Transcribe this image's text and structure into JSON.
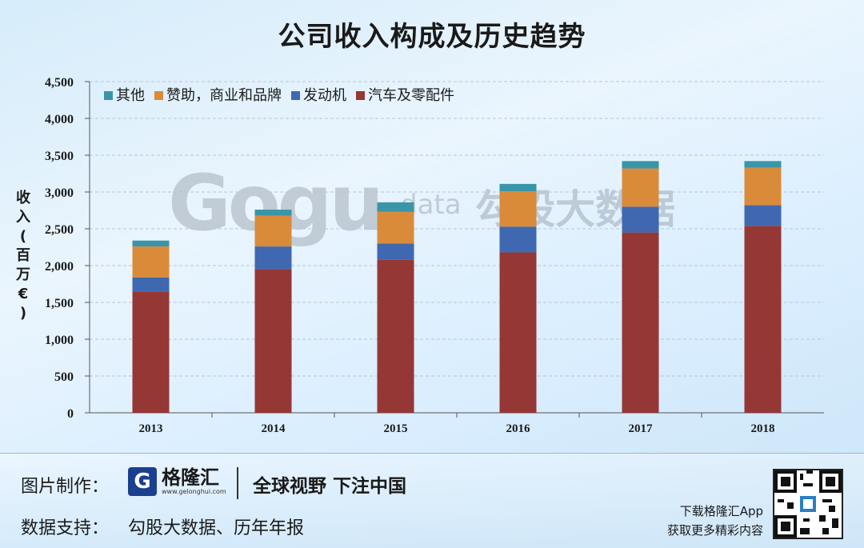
{
  "page": {
    "title": "公司收入构成及历史趋势"
  },
  "chart_data": {
    "type": "bar",
    "stacked": true,
    "title": "公司收入构成及历史趋势",
    "ylabel": "收入(百万€)",
    "xlabel": "",
    "categories": [
      "2013",
      "2014",
      "2015",
      "2016",
      "2017",
      "2018"
    ],
    "ylim": [
      0,
      4500
    ],
    "yticks": [
      0,
      500,
      1000,
      1500,
      2000,
      2500,
      3000,
      3500,
      4000,
      4500
    ],
    "ytick_labels": [
      "0",
      "500",
      "1,000",
      "1,500",
      "2,000",
      "2,500",
      "3,000",
      "3,500",
      "4,000",
      "4,500"
    ],
    "grid": true,
    "legend_position": "top-left",
    "series": [
      {
        "name": "汽车及零配件",
        "color": "#953735",
        "values": [
          1650,
          1950,
          2080,
          2180,
          2450,
          2540
        ]
      },
      {
        "name": "发动机",
        "color": "#3f68b0",
        "values": [
          190,
          310,
          220,
          350,
          350,
          280
        ]
      },
      {
        "name": "赞助，商业和品牌",
        "color": "#d98b3a",
        "values": [
          420,
          420,
          430,
          480,
          520,
          510
        ]
      },
      {
        "name": "其他",
        "color": "#3a95a8",
        "values": [
          80,
          80,
          130,
          100,
          100,
          90
        ]
      }
    ],
    "legend_order": [
      "其他",
      "赞助，商业和品牌",
      "发动机",
      "汽车及零配件"
    ]
  },
  "footer": {
    "credit_label": "图片制作：",
    "logo_name": "格隆汇",
    "logo_mark": "G",
    "logo_url": "www.gelonghui.com",
    "slogan": "全球视野 下注中国",
    "source_label": "数据支持：",
    "source_text": "勾股大数据、历年年报",
    "app_line1": "下载格隆汇App",
    "app_line2": "获取更多精彩内容",
    "qr_icon": "qr-code-icon"
  },
  "watermark": {
    "logo": "Gogu",
    "data": "data",
    "text": "勾股大数据"
  }
}
